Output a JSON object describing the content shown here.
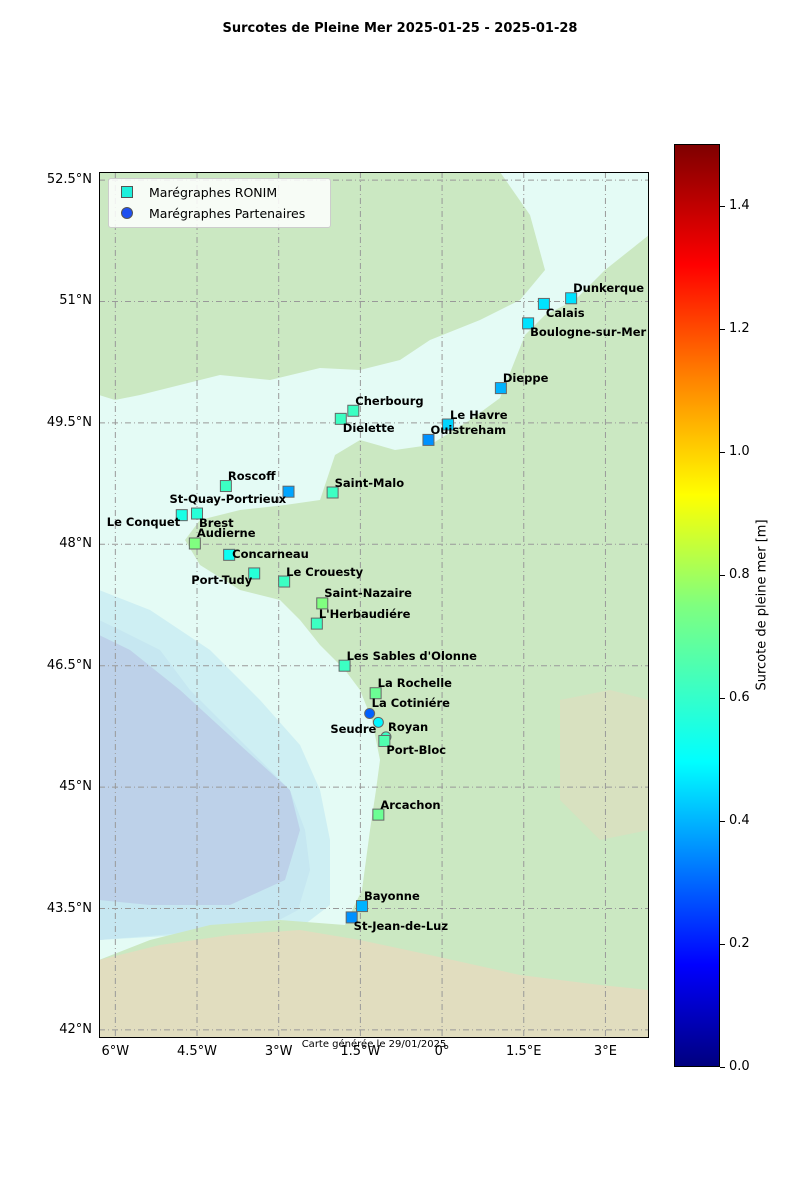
{
  "title": "Surcotes de Pleine Mer 2025-01-25 - 2025-01-28",
  "credit": "Carte générée le 29/01/2025",
  "map": {
    "lon_range": [
      -6.3,
      3.8
    ],
    "lat_range": [
      41.9,
      52.6
    ],
    "lat_ticks": [
      {
        "value": 52.5,
        "label": "52.5°N"
      },
      {
        "value": 51.0,
        "label": "51°N"
      },
      {
        "value": 49.5,
        "label": "49.5°N"
      },
      {
        "value": 48.0,
        "label": "48°N"
      },
      {
        "value": 46.5,
        "label": "46.5°N"
      },
      {
        "value": 45.0,
        "label": "45°N"
      },
      {
        "value": 43.5,
        "label": "43.5°N"
      },
      {
        "value": 42.0,
        "label": "42°N"
      }
    ],
    "lon_ticks": [
      {
        "value": -6.0,
        "label": "6°W"
      },
      {
        "value": -4.5,
        "label": "4.5°W"
      },
      {
        "value": -3.0,
        "label": "3°W"
      },
      {
        "value": -1.5,
        "label": "1.5°W"
      },
      {
        "value": 0.0,
        "label": "0°"
      },
      {
        "value": 1.5,
        "label": "1.5°E"
      },
      {
        "value": 3.0,
        "label": "3°E"
      }
    ],
    "grid": true,
    "colors": {
      "sea": "#e4fbf5",
      "land_low": "#cbe8c2",
      "deep": "#b6c9e6",
      "hills": "#e3dbbf"
    }
  },
  "legend": {
    "position": "top-left",
    "items": [
      {
        "label": "Marégraphes RONIM",
        "marker": "square",
        "color": "#1ef0dc"
      },
      {
        "label": "Marégraphes Partenaires",
        "marker": "circle",
        "color": "#1e4ff0"
      }
    ]
  },
  "colorbar": {
    "label": "Surcote de pleine mer [m]",
    "range": [
      0,
      1.5
    ],
    "ticks": [
      {
        "value": 0,
        "label": "0.0"
      },
      {
        "value": 0.2,
        "label": "0.2"
      },
      {
        "value": 0.4,
        "label": "0.4"
      },
      {
        "value": 0.6,
        "label": "0.6"
      },
      {
        "value": 0.8,
        "label": "0.8"
      },
      {
        "value": 1.0,
        "label": "1.0"
      },
      {
        "value": 1.2,
        "label": "1.2"
      },
      {
        "value": 1.4,
        "label": "1.4"
      }
    ],
    "colormap": "jet"
  },
  "stations": [
    {
      "name": "Dunkerque",
      "lon": 2.37,
      "lat": 51.04,
      "surge": 0.52,
      "type": "RONIM",
      "anchor": "ne"
    },
    {
      "name": "Calais",
      "lon": 1.87,
      "lat": 50.97,
      "surge": 0.52,
      "type": "RONIM",
      "anchor": "se"
    },
    {
      "name": "Boulogne-sur-Mer",
      "lon": 1.58,
      "lat": 50.73,
      "surge": 0.52,
      "type": "RONIM",
      "anchor": "se"
    },
    {
      "name": "Dieppe",
      "lon": 1.08,
      "lat": 49.93,
      "surge": 0.45,
      "type": "RONIM",
      "anchor": "ne"
    },
    {
      "name": "Le Havre",
      "lon": 0.11,
      "lat": 49.48,
      "surge": 0.5,
      "type": "RONIM",
      "anchor": "ne"
    },
    {
      "name": "Ouistreham",
      "lon": -0.25,
      "lat": 49.29,
      "surge": 0.4,
      "type": "RONIM",
      "anchor": "ne"
    },
    {
      "name": "Cherbourg",
      "lon": -1.63,
      "lat": 49.65,
      "surge": 0.65,
      "type": "RONIM",
      "anchor": "ne"
    },
    {
      "name": "Dielette",
      "lon": -1.86,
      "lat": 49.55,
      "surge": 0.65,
      "type": "RONIM",
      "anchor": "se"
    },
    {
      "name": "Roscoff",
      "lon": -3.97,
      "lat": 48.72,
      "surge": 0.65,
      "type": "RONIM",
      "anchor": "ne"
    },
    {
      "name": "St-Quay-Portrieux",
      "lon": -2.82,
      "lat": 48.65,
      "surge": 0.43,
      "type": "RONIM",
      "anchor": "sw"
    },
    {
      "name": "Saint-Malo",
      "lon": -2.01,
      "lat": 48.64,
      "surge": 0.65,
      "type": "RONIM",
      "anchor": "ne"
    },
    {
      "name": "Le Conquet",
      "lon": -4.78,
      "lat": 48.36,
      "surge": 0.6,
      "type": "RONIM",
      "anchor": "sw"
    },
    {
      "name": "Brest",
      "lon": -4.5,
      "lat": 48.38,
      "surge": 0.62,
      "type": "RONIM",
      "anchor": "se"
    },
    {
      "name": "Audierne",
      "lon": -4.54,
      "lat": 48.01,
      "surge": 0.75,
      "type": "RONIM",
      "anchor": "ne"
    },
    {
      "name": "Concarneau",
      "lon": -3.91,
      "lat": 47.87,
      "surge": 0.58,
      "type": "RONIM",
      "anchor": "e"
    },
    {
      "name": "Port-Tudy",
      "lon": -3.45,
      "lat": 47.64,
      "surge": 0.62,
      "type": "RONIM",
      "anchor": "sw"
    },
    {
      "name": "Le Crouesty",
      "lon": -2.9,
      "lat": 47.54,
      "surge": 0.65,
      "type": "RONIM",
      "anchor": "ne"
    },
    {
      "name": "Saint-Nazaire",
      "lon": -2.2,
      "lat": 47.27,
      "surge": 0.75,
      "type": "RONIM",
      "anchor": "ne"
    },
    {
      "name": "L'Herbaudiére",
      "lon": -2.3,
      "lat": 47.02,
      "surge": 0.65,
      "type": "RONIM",
      "anchor": "ne"
    },
    {
      "name": "Les Sables d'Olonne",
      "lon": -1.79,
      "lat": 46.5,
      "surge": 0.65,
      "type": "RONIM",
      "anchor": "ne"
    },
    {
      "name": "La Rochelle",
      "lon": -1.22,
      "lat": 46.16,
      "surge": 0.72,
      "type": "RONIM",
      "anchor": "ne"
    },
    {
      "name": "La Cotiniére",
      "lon": -1.33,
      "lat": 45.91,
      "surge": 0.33,
      "type": "Partenaire",
      "anchor": "ne"
    },
    {
      "name": "Seudre",
      "lon": -1.17,
      "lat": 45.8,
      "surge": 0.55,
      "type": "Partenaire",
      "anchor": "sw"
    },
    {
      "name": "Royan",
      "lon": -1.03,
      "lat": 45.62,
      "surge": 0.65,
      "type": "Partenaire",
      "anchor": "ne"
    },
    {
      "name": "Port-Bloc",
      "lon": -1.06,
      "lat": 45.57,
      "surge": 0.68,
      "type": "RONIM",
      "anchor": "se"
    },
    {
      "name": "Arcachon",
      "lon": -1.17,
      "lat": 44.66,
      "surge": 0.72,
      "type": "RONIM",
      "anchor": "ne"
    },
    {
      "name": "Bayonne",
      "lon": -1.47,
      "lat": 43.53,
      "surge": 0.45,
      "type": "RONIM",
      "anchor": "ne"
    },
    {
      "name": "St-Jean-de-Luz",
      "lon": -1.66,
      "lat": 43.39,
      "surge": 0.4,
      "type": "RONIM",
      "anchor": "se"
    }
  ]
}
